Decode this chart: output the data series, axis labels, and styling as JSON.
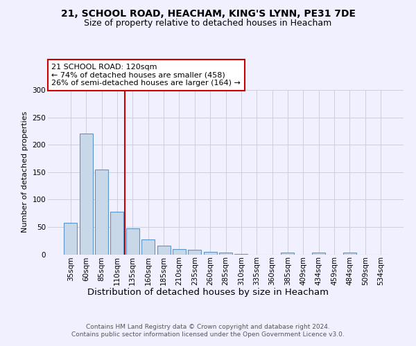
{
  "title1": "21, SCHOOL ROAD, HEACHAM, KING'S LYNN, PE31 7DE",
  "title2": "Size of property relative to detached houses in Heacham",
  "xlabel": "Distribution of detached houses by size in Heacham",
  "ylabel": "Number of detached properties",
  "categories": [
    "35sqm",
    "60sqm",
    "85sqm",
    "110sqm",
    "135sqm",
    "160sqm",
    "185sqm",
    "210sqm",
    "235sqm",
    "260sqm",
    "285sqm",
    "310sqm",
    "335sqm",
    "360sqm",
    "385sqm",
    "409sqm",
    "434sqm",
    "459sqm",
    "484sqm",
    "509sqm",
    "534sqm"
  ],
  "values": [
    58,
    220,
    155,
    78,
    47,
    27,
    16,
    10,
    8,
    5,
    3,
    1,
    0,
    0,
    3,
    0,
    3,
    0,
    3,
    0,
    0
  ],
  "bar_color": "#c8d8e8",
  "bar_edge_color": "#5a96c8",
  "reference_line_x": 3.5,
  "reference_line_color": "#cc0000",
  "annotation_line1": "21 SCHOOL ROAD: 120sqm",
  "annotation_line2": "← 74% of detached houses are smaller (458)",
  "annotation_line3": "26% of semi-detached houses are larger (164) →",
  "annotation_box_color": "#ffffff",
  "annotation_box_edge_color": "#cc0000",
  "ylim": [
    0,
    300
  ],
  "yticks": [
    0,
    50,
    100,
    150,
    200,
    250,
    300
  ],
  "footnote": "Contains HM Land Registry data © Crown copyright and database right 2024.\nContains public sector information licensed under the Open Government Licence v3.0.",
  "background_color": "#f0f0ff",
  "grid_color": "#d0d0d8",
  "title1_fontsize": 10,
  "title2_fontsize": 9,
  "annotation_fontsize": 8,
  "tick_fontsize": 7.5,
  "ylabel_fontsize": 8,
  "xlabel_fontsize": 9.5,
  "footnote_fontsize": 6.5
}
